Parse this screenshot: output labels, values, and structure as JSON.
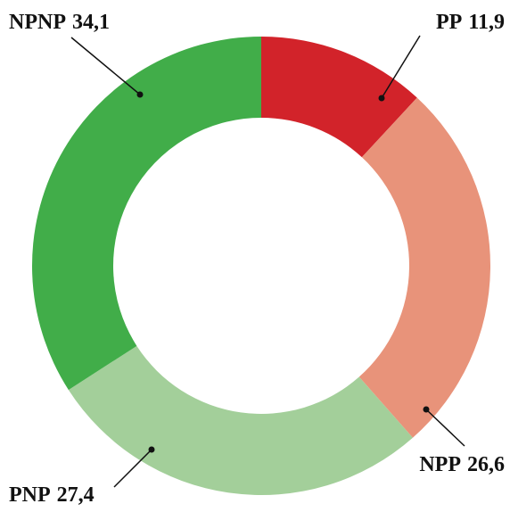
{
  "chart_data": {
    "type": "donut",
    "categories": [
      "PP",
      "NPP",
      "PNP",
      "NPNP"
    ],
    "values": [
      11.9,
      26.6,
      27.4,
      34.1
    ],
    "value_labels": [
      "11,9",
      "26,6",
      "27,4",
      "34,1"
    ],
    "colors": [
      "#d2232a",
      "#e8937a",
      "#a3cf9a",
      "#41ad49"
    ]
  }
}
